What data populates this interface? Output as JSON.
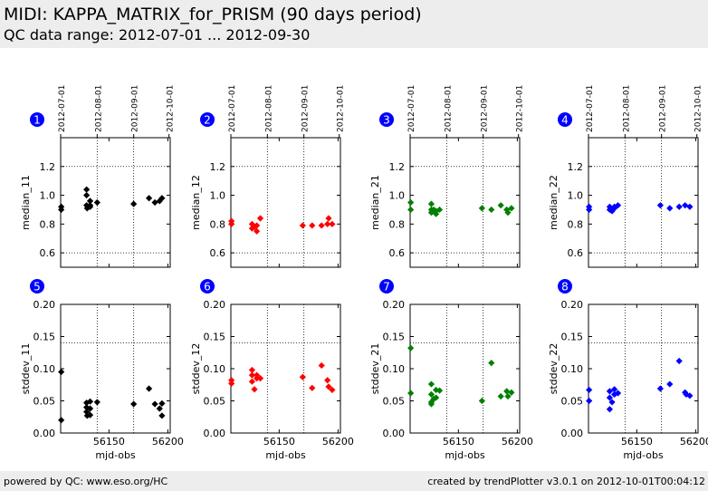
{
  "header": {
    "title": "MIDI: KAPPA_MATRIX_for_PRISM (90 days period)",
    "subtitle": "QC data range: 2012-07-01 ... 2012-09-30"
  },
  "footer": {
    "left": "powered by QC: www.eso.org/HC",
    "right": "created by trendPlotter v3.0.1 on 2012-10-01T00:04:12"
  },
  "chart_data": [
    {
      "type": "scatter",
      "index": "1",
      "ylabel": "median_11",
      "xlabel": "",
      "color": "#000000",
      "xlim": [
        56109,
        56202
      ],
      "ylim": [
        0.5,
        1.4
      ],
      "yticks": [
        0.6,
        0.8,
        1.0,
        1.2
      ],
      "xticks": [
        56150,
        56200
      ],
      "date_ticks": [
        {
          "x": 56109,
          "label": "2012-07-01"
        },
        {
          "x": 56140,
          "label": "2012-08-01"
        },
        {
          "x": 56171,
          "label": "2012-09-01"
        },
        {
          "x": 56201,
          "label": "2012-10-01"
        }
      ],
      "hlines": [
        0.6,
        1.2
      ],
      "vlines": [
        56140,
        56171
      ],
      "x": [
        56109.5,
        56109.5,
        56131,
        56131,
        56131,
        56131.5,
        56134,
        56134,
        56134,
        56140,
        56171,
        56184,
        56189,
        56193,
        56195
      ],
      "y": [
        0.92,
        0.9,
        1.04,
        1.0,
        0.93,
        0.91,
        0.96,
        0.93,
        0.92,
        0.95,
        0.94,
        0.98,
        0.95,
        0.96,
        0.98
      ]
    },
    {
      "type": "scatter",
      "index": "2",
      "ylabel": "median_12",
      "xlabel": "",
      "color": "#ff0000",
      "xlim": [
        56109,
        56202
      ],
      "ylim": [
        0.5,
        1.4
      ],
      "yticks": [
        0.6,
        0.8,
        1.0,
        1.2
      ],
      "xticks": [
        56150,
        56200
      ],
      "date_ticks": [
        {
          "x": 56109,
          "label": "2012-07-01"
        },
        {
          "x": 56140,
          "label": "2012-08-01"
        },
        {
          "x": 56171,
          "label": "2012-09-01"
        },
        {
          "x": 56201,
          "label": "2012-10-01"
        }
      ],
      "hlines": [
        0.6,
        1.2
      ],
      "vlines": [
        56140,
        56171
      ],
      "x": [
        56109.5,
        56109.5,
        56127,
        56127,
        56129,
        56131,
        56131,
        56134,
        56170,
        56178,
        56186,
        56191,
        56192,
        56195
      ],
      "y": [
        0.82,
        0.8,
        0.8,
        0.77,
        0.78,
        0.79,
        0.75,
        0.84,
        0.79,
        0.79,
        0.79,
        0.8,
        0.84,
        0.8
      ]
    },
    {
      "type": "scatter",
      "index": "3",
      "ylabel": "median_21",
      "xlabel": "",
      "color": "#008000",
      "xlim": [
        56109,
        56202
      ],
      "ylim": [
        0.5,
        1.4
      ],
      "yticks": [
        0.6,
        0.8,
        1.0,
        1.2
      ],
      "xticks": [
        56150,
        56200
      ],
      "date_ticks": [
        {
          "x": 56109,
          "label": "2012-07-01"
        },
        {
          "x": 56140,
          "label": "2012-08-01"
        },
        {
          "x": 56171,
          "label": "2012-09-01"
        },
        {
          "x": 56201,
          "label": "2012-10-01"
        }
      ],
      "hlines": [
        0.6,
        1.2
      ],
      "vlines": [
        56140,
        56171
      ],
      "x": [
        56109.5,
        56109.5,
        56127,
        56127,
        56127,
        56129,
        56131,
        56131,
        56134,
        56170,
        56178,
        56186,
        56191,
        56192,
        56195
      ],
      "y": [
        0.95,
        0.9,
        0.94,
        0.9,
        0.88,
        0.9,
        0.89,
        0.87,
        0.9,
        0.91,
        0.9,
        0.93,
        0.9,
        0.88,
        0.91
      ]
    },
    {
      "type": "scatter",
      "index": "4",
      "ylabel": "median_22",
      "xlabel": "",
      "color": "#0000ff",
      "xlim": [
        56109,
        56202
      ],
      "ylim": [
        0.5,
        1.4
      ],
      "yticks": [
        0.6,
        0.8,
        1.0,
        1.2
      ],
      "xticks": [
        56150,
        56200
      ],
      "date_ticks": [
        {
          "x": 56109,
          "label": "2012-07-01"
        },
        {
          "x": 56140,
          "label": "2012-08-01"
        },
        {
          "x": 56171,
          "label": "2012-09-01"
        },
        {
          "x": 56201,
          "label": "2012-10-01"
        }
      ],
      "hlines": [
        0.6,
        1.2
      ],
      "vlines": [
        56140,
        56171
      ],
      "x": [
        56109.5,
        56109.5,
        56127,
        56127,
        56129,
        56131,
        56131,
        56134,
        56170,
        56178,
        56186,
        56191,
        56195
      ],
      "y": [
        0.92,
        0.9,
        0.92,
        0.9,
        0.89,
        0.92,
        0.91,
        0.93,
        0.93,
        0.91,
        0.92,
        0.93,
        0.92
      ]
    },
    {
      "type": "scatter",
      "index": "5",
      "ylabel": "stddev_11",
      "xlabel": "mjd-obs",
      "color": "#000000",
      "xlim": [
        56109,
        56202
      ],
      "ylim": [
        0,
        0.2
      ],
      "yticks": [
        0.0,
        0.05,
        0.1,
        0.15,
        0.2
      ],
      "xticks": [
        56150,
        56200
      ],
      "hlines": [
        0.14
      ],
      "vlines": [
        56140,
        56171
      ],
      "x": [
        56109.5,
        56109.5,
        56131,
        56131,
        56131,
        56131.5,
        56134,
        56134,
        56134,
        56140,
        56171,
        56184,
        56189,
        56193,
        56195,
        56195
      ],
      "y": [
        0.095,
        0.02,
        0.047,
        0.04,
        0.033,
        0.027,
        0.049,
        0.038,
        0.028,
        0.048,
        0.045,
        0.069,
        0.045,
        0.038,
        0.046,
        0.027
      ]
    },
    {
      "type": "scatter",
      "index": "6",
      "ylabel": "stddev_12",
      "xlabel": "mjd-obs",
      "color": "#ff0000",
      "xlim": [
        56109,
        56202
      ],
      "ylim": [
        0,
        0.2
      ],
      "yticks": [
        0.0,
        0.05,
        0.1,
        0.15,
        0.2
      ],
      "xticks": [
        56150,
        56200
      ],
      "hlines": [
        0.14
      ],
      "vlines": [
        56140,
        56171
      ],
      "x": [
        56109.5,
        56109.5,
        56127,
        56127,
        56127,
        56129,
        56131,
        56131,
        56134,
        56170,
        56178,
        56186,
        56191,
        56192,
        56195
      ],
      "y": [
        0.082,
        0.077,
        0.098,
        0.09,
        0.08,
        0.068,
        0.09,
        0.085,
        0.085,
        0.087,
        0.07,
        0.105,
        0.082,
        0.072,
        0.067
      ]
    },
    {
      "type": "scatter",
      "index": "7",
      "ylabel": "stddev_21",
      "xlabel": "mjd-obs",
      "color": "#008000",
      "xlim": [
        56109,
        56202
      ],
      "ylim": [
        0,
        0.2
      ],
      "yticks": [
        0.0,
        0.05,
        0.1,
        0.15,
        0.2
      ],
      "xticks": [
        56150,
        56200
      ],
      "hlines": [
        0.14
      ],
      "vlines": [
        56140,
        56171
      ],
      "x": [
        56109.5,
        56109.5,
        56127,
        56127,
        56127,
        56127,
        56129,
        56131,
        56131,
        56134,
        56170,
        56178,
        56186,
        56191,
        56192,
        56195
      ],
      "y": [
        0.132,
        0.062,
        0.076,
        0.06,
        0.048,
        0.045,
        0.053,
        0.067,
        0.055,
        0.066,
        0.05,
        0.109,
        0.057,
        0.065,
        0.057,
        0.063
      ]
    },
    {
      "type": "scatter",
      "index": "8",
      "ylabel": "stddev_22",
      "xlabel": "mjd-obs",
      "color": "#0000ff",
      "xlim": [
        56109,
        56202
      ],
      "ylim": [
        0,
        0.2
      ],
      "yticks": [
        0.0,
        0.05,
        0.1,
        0.15,
        0.2
      ],
      "xticks": [
        56150,
        56200
      ],
      "hlines": [
        0.14
      ],
      "vlines": [
        56140,
        56171
      ],
      "x": [
        56109.5,
        56109.5,
        56127,
        56127,
        56127,
        56129,
        56131,
        56131,
        56134,
        56170,
        56178,
        56186,
        56191,
        56192,
        56195
      ],
      "y": [
        0.067,
        0.05,
        0.065,
        0.055,
        0.037,
        0.048,
        0.068,
        0.06,
        0.062,
        0.069,
        0.076,
        0.112,
        0.063,
        0.06,
        0.058
      ]
    }
  ]
}
